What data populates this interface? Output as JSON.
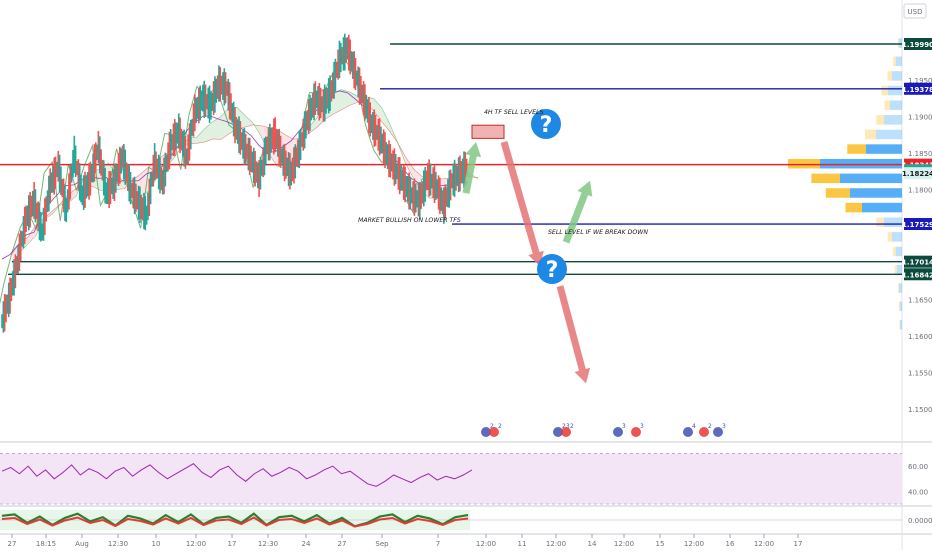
{
  "header": {
    "currency": "USD"
  },
  "chart_data": {
    "type": "line",
    "title": "",
    "main_pane": {
      "y_axis": {
        "ticks": [
          "1.19500",
          "1.19000",
          "1.18500",
          "1.18000",
          "1.17500",
          "1.17000",
          "1.16500",
          "1.16000",
          "1.15500",
          "1.15000"
        ],
        "range": [
          1.145,
          1.2045
        ]
      },
      "x_axis": {
        "ticks": [
          "27",
          "18:15",
          "Aug",
          "12:30",
          "10",
          "12:00",
          "17",
          "12:30",
          "24",
          "27",
          "Sep",
          "7",
          "12:00",
          "11",
          "12:00",
          "14",
          "12:00",
          "15",
          "12:00",
          "16",
          "12:00",
          "17"
        ]
      },
      "price_series": {
        "name": "",
        "values": [
          1.162,
          1.1655,
          1.1705,
          1.176,
          1.1785,
          1.1742,
          1.1805,
          1.1832,
          1.1772,
          1.1848,
          1.1792,
          1.1815,
          1.1858,
          1.1795,
          1.181,
          1.1845,
          1.1802,
          1.1782,
          1.1765,
          1.1838,
          1.181,
          1.1862,
          1.188,
          1.1845,
          1.1905,
          1.1925,
          1.1915,
          1.1945,
          1.1938,
          1.1888,
          1.1862,
          1.1842,
          1.1815,
          1.186,
          1.1875,
          1.184,
          1.1822,
          1.1855,
          1.1895,
          1.1925,
          1.1915,
          1.1935,
          1.1978,
          1.1993,
          1.1958,
          1.1925,
          1.189,
          1.1872,
          1.1845,
          1.1828,
          1.181,
          1.1792,
          1.1785,
          1.1818,
          1.1805,
          1.1778,
          1.1812,
          1.1822,
          1.1832
        ]
      },
      "price_levels": [
        {
          "label": "1.19990",
          "value": 1.1999,
          "color": "#0b4a3c"
        },
        {
          "label": "1.19378",
          "value": 1.19378,
          "color": "#1a1ab8"
        },
        {
          "label": "1.18341",
          "value": 1.18341,
          "color": "#e8242a"
        },
        {
          "label": "1.17529",
          "value": 1.17529,
          "color": "#1a1ab8"
        },
        {
          "label": "1.17014",
          "value": 1.17014,
          "color": "#0b4a3c"
        },
        {
          "label": "1.16842",
          "value": 1.16842,
          "color": "#0b4a3c"
        }
      ],
      "price_tags": [
        {
          "label": "1.18264",
          "value": 1.18264,
          "color": "#26a69a"
        },
        {
          "label": "1.18224",
          "value": 1.18224,
          "color": "#d8f0ee"
        }
      ],
      "sell_zone": {
        "top": 1.1888,
        "bottom": 1.187
      },
      "projections": [
        {
          "direction": "up",
          "color": "green",
          "from": 1.1795,
          "to": 1.1865
        },
        {
          "direction": "down",
          "color": "red",
          "from": 1.1865,
          "to": 1.1695
        },
        {
          "direction": "up",
          "color": "green",
          "from": 1.1728,
          "to": 1.1812
        },
        {
          "direction": "down",
          "color": "red",
          "from": 1.1668,
          "to": 1.1535
        }
      ],
      "annotations": [
        {
          "text": "4H TF SELL LEVELS"
        },
        {
          "text": "MARKET BULLISH ON LOWER TFS"
        },
        {
          "text": "SELL LEVEL IF WE BREAK DOWN"
        }
      ],
      "question_marks": [
        "?",
        "?"
      ],
      "event_icons": [
        "2",
        "2",
        "23",
        "2",
        "3",
        "3",
        "4",
        "2",
        "3"
      ]
    },
    "rsi_pane": {
      "ticks": [
        "60.00",
        "40.00"
      ],
      "range": [
        30,
        76
      ],
      "band": [
        30,
        70
      ],
      "values": [
        56,
        59,
        54,
        60,
        52,
        57,
        50,
        55,
        61,
        53,
        58,
        55,
        50,
        56,
        59,
        52,
        57,
        61,
        55,
        50,
        54,
        58,
        62,
        55,
        51,
        57,
        60,
        53,
        48,
        54,
        58,
        52,
        55,
        59,
        56,
        50,
        53,
        57,
        60,
        54,
        56,
        51,
        46,
        44,
        48,
        53,
        50,
        47,
        51,
        54,
        49,
        52,
        50,
        53,
        57
      ]
    },
    "osc_pane": {
      "ticks": [
        "0.00000"
      ],
      "values": [
        0.6,
        0.8,
        -0.4,
        0.5,
        -0.7,
        0.3,
        0.9,
        -0.2,
        0.4,
        -0.8,
        0.6,
        0.2,
        -0.5,
        0.7,
        -0.3,
        0.8,
        -0.6,
        0.3,
        0.5,
        -0.4,
        0.9,
        -0.7,
        0.4,
        0.6,
        -0.2,
        0.7,
        -0.5,
        0.3,
        -0.9,
        -0.4,
        0.5,
        0.8,
        -0.3,
        0.6,
        0.2,
        -0.6,
        0.4,
        0.7
      ]
    },
    "volume_profile": {
      "rows": [
        {
          "price": 1.2,
          "buy": 2,
          "sell": 3
        },
        {
          "price": 1.1975,
          "buy": 5,
          "sell": 6
        },
        {
          "price": 1.1955,
          "buy": 8,
          "sell": 10
        },
        {
          "price": 1.1935,
          "buy": 12,
          "sell": 14
        },
        {
          "price": 1.1915,
          "buy": 10,
          "sell": 12
        },
        {
          "price": 1.1895,
          "buy": 14,
          "sell": 18
        },
        {
          "price": 1.1875,
          "buy": 20,
          "sell": 26
        },
        {
          "price": 1.1855,
          "buy": 34,
          "sell": 36
        },
        {
          "price": 1.1835,
          "buy": 58,
          "sell": 82
        },
        {
          "price": 1.1815,
          "buy": 52,
          "sell": 62
        },
        {
          "price": 1.1795,
          "buy": 44,
          "sell": 52
        },
        {
          "price": 1.1775,
          "buy": 30,
          "sell": 40
        },
        {
          "price": 1.1755,
          "buy": 14,
          "sell": 18
        },
        {
          "price": 1.1735,
          "buy": 8,
          "sell": 10
        },
        {
          "price": 1.1715,
          "buy": 5,
          "sell": 6
        },
        {
          "price": 1.169,
          "buy": 4,
          "sell": 5
        },
        {
          "price": 1.1665,
          "buy": 2,
          "sell": 3
        },
        {
          "price": 1.164,
          "buy": 2,
          "sell": 2
        },
        {
          "price": 1.1615,
          "buy": 1,
          "sell": 2
        }
      ]
    },
    "colors": {
      "bull": "#26a69a",
      "bear": "#ef5350",
      "ichimoku_green": "#43a047",
      "ichimoku_red": "#e53935",
      "ichimoku_purple": "#8e24aa",
      "cloud_bull": "#c8e6c9",
      "cloud_bear": "#ffcdd2",
      "rsi": "#9c27b0",
      "rsi_band": "#f3e5f5",
      "vp_sell": "#42a5f5",
      "vp_buy": "#fbc02d"
    }
  }
}
